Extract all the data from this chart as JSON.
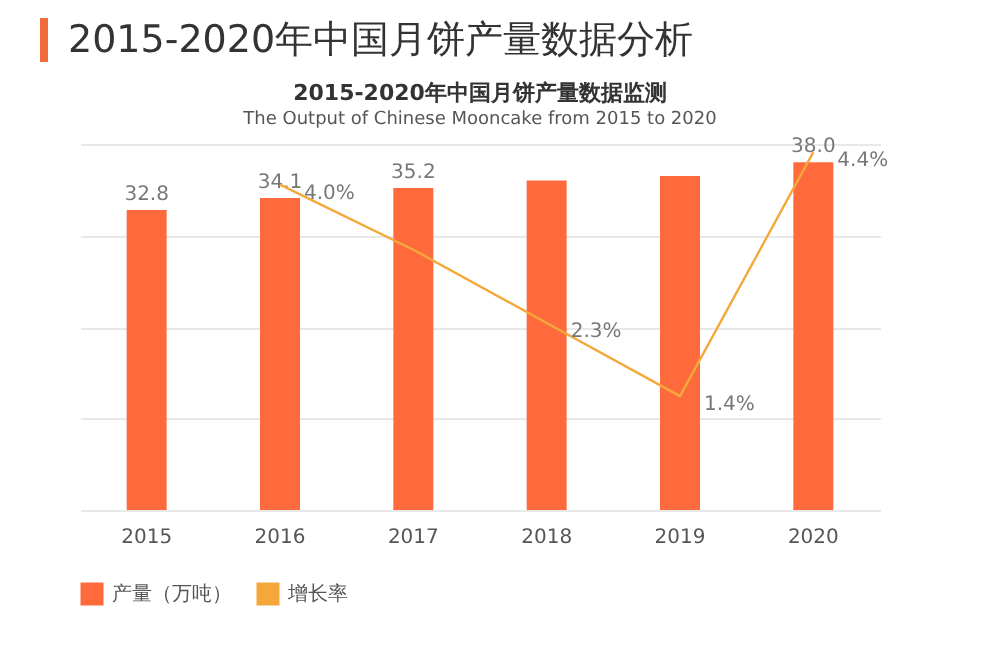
{
  "chart_data": {
    "type": "bar",
    "title": "2015-2020年中国月饼产量数据分析",
    "subtitle": "2015-2020年中国月饼产量数据监测",
    "annotations": [
      "The  Output of Chinese Mooncake from 2015 to 2020"
    ],
    "categories": [
      "2015",
      "2016",
      "2017",
      "2018",
      "2019",
      "2020"
    ],
    "series": [
      {
        "name": "产量（万吨）",
        "color": "#ff6a3d",
        "values": [
          32.8,
          34.1,
          35.2,
          36.0,
          36.5,
          38.0
        ],
        "value_labels": [
          "32.8",
          "34.1",
          "35.2",
          null,
          null,
          "38.0"
        ]
      },
      {
        "name": "增长率",
        "type": "line",
        "axis": "y2",
        "color": "#f5a83a",
        "values": [
          null,
          4.0,
          3.2,
          2.3,
          1.4,
          4.4
        ],
        "value_labels": [
          null,
          "4.0%",
          null,
          "2.3%",
          "1.4%",
          "4.4%"
        ]
      }
    ],
    "grid": "y",
    "legend": "bottom"
  }
}
